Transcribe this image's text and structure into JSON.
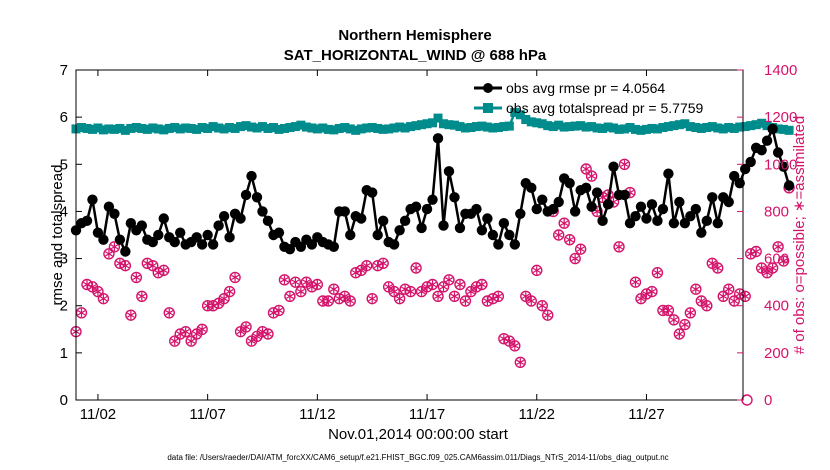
{
  "chart_data": {
    "type": "line",
    "title": "Northern Hemisphere",
    "subtitle": "SAT_HORIZONTAL_WIND @ 688 hPa",
    "xlabel": "Nov.01,2014 00:00:00 start",
    "ylabel_left": "rmse and totalspread",
    "ylabel_right": "# of obs: o=possible; ∗=assimilated",
    "x_ticks": [
      "11/02",
      "11/07",
      "11/12",
      "11/17",
      "11/22",
      "11/27"
    ],
    "x_tick_days": [
      2,
      7,
      12,
      17,
      22,
      27
    ],
    "xlim_days": [
      1.0,
      31.4
    ],
    "ylim_left": [
      0,
      7
    ],
    "y_ticks_left": [
      "0",
      "1",
      "2",
      "3",
      "4",
      "5",
      "6",
      "7"
    ],
    "ylim_right": [
      0,
      1400
    ],
    "y_ticks_right": [
      "0",
      "200",
      "400",
      "600",
      "800",
      "1000",
      "1200",
      "1400"
    ],
    "grid": false,
    "legend_position": "top-right",
    "footnote": "data file: /Users/raeder/DAI/ATM_forcXX/CAM6_setup/f.e21.FHIST_BGC.f09_025.CAM6assim.011/Diags_NTrS_2014-11/obs_diag_output.nc",
    "colors": {
      "rmse": "#000000",
      "spread": "#008c8c",
      "obs": "#d4136b"
    },
    "series": [
      {
        "name": "obs avg rmse pr = 4.0564",
        "axis": "left",
        "x_start_day": 1.0,
        "x_step_days": 0.25,
        "values": [
          3.6,
          3.75,
          3.8,
          4.25,
          3.55,
          3.4,
          4.1,
          3.95,
          3.4,
          3.15,
          3.75,
          3.6,
          3.7,
          3.4,
          3.35,
          3.5,
          3.85,
          3.45,
          3.35,
          3.55,
          3.3,
          3.35,
          3.45,
          3.3,
          3.5,
          3.3,
          3.7,
          3.9,
          3.45,
          3.95,
          3.85,
          4.35,
          4.75,
          4.3,
          4.0,
          3.8,
          3.5,
          3.55,
          3.25,
          3.2,
          3.35,
          3.25,
          3.4,
          3.3,
          3.45,
          3.35,
          3.3,
          3.25,
          4.0,
          4.0,
          3.5,
          3.9,
          3.85,
          4.45,
          4.4,
          3.5,
          3.8,
          3.35,
          3.3,
          3.6,
          3.8,
          4.05,
          4.1,
          3.65,
          4.05,
          4.25,
          5.55,
          3.7,
          4.85,
          4.3,
          3.65,
          3.95,
          3.95,
          4.05,
          3.6,
          3.85,
          3.5,
          3.3,
          3.75,
          3.5,
          3.3,
          3.95,
          4.6,
          4.5,
          4.05,
          4.25,
          4.0,
          4.05,
          4.2,
          4.7,
          4.6,
          4.0,
          4.45,
          4.5,
          4.1,
          4.4,
          3.8,
          4.15,
          4.95,
          4.35,
          4.35,
          3.75,
          3.9,
          4.1,
          3.85,
          4.15,
          3.8,
          4.05,
          4.8,
          3.75,
          4.2,
          3.75,
          3.9,
          4.05,
          3.55,
          3.8,
          4.3,
          3.75,
          4.3,
          4.2,
          4.75,
          4.6,
          4.9,
          5.05,
          5.35,
          5.3,
          5.5,
          5.75,
          5.25,
          4.95,
          4.55
        ]
      },
      {
        "name": "obs avg totalspread pr = 5.7759",
        "axis": "left",
        "x_start_day": 1.0,
        "x_step_days": 0.25,
        "values": [
          5.75,
          5.78,
          5.76,
          5.74,
          5.77,
          5.73,
          5.75,
          5.74,
          5.76,
          5.72,
          5.76,
          5.78,
          5.76,
          5.74,
          5.77,
          5.75,
          5.73,
          5.76,
          5.78,
          5.75,
          5.77,
          5.76,
          5.74,
          5.78,
          5.76,
          5.8,
          5.77,
          5.75,
          5.78,
          5.76,
          5.8,
          5.82,
          5.79,
          5.77,
          5.8,
          5.76,
          5.78,
          5.74,
          5.76,
          5.78,
          5.8,
          5.83,
          5.79,
          5.77,
          5.75,
          5.77,
          5.74,
          5.73,
          5.76,
          5.78,
          5.75,
          5.72,
          5.75,
          5.77,
          5.78,
          5.76,
          5.74,
          5.75,
          5.77,
          5.79,
          5.77,
          5.8,
          5.82,
          5.84,
          5.86,
          5.88,
          5.98,
          5.86,
          5.84,
          5.83,
          5.8,
          5.77,
          5.78,
          5.8,
          5.81,
          5.79,
          5.77,
          5.78,
          5.8,
          5.81,
          6.1,
          6.05,
          5.95,
          5.9,
          5.88,
          5.86,
          5.82,
          5.8,
          5.83,
          5.79,
          5.8,
          5.81,
          5.82,
          5.79,
          5.8,
          5.77,
          5.76,
          5.79,
          5.77,
          5.74,
          5.75,
          5.78,
          5.74,
          5.72,
          5.74,
          5.76,
          5.75,
          5.78,
          5.8,
          5.82,
          5.84,
          5.86,
          5.8,
          5.78,
          5.76,
          5.78,
          5.8,
          5.77,
          5.75,
          5.78,
          5.76,
          5.79,
          5.8,
          5.82,
          5.84,
          5.87,
          5.82,
          5.78,
          5.75,
          5.74,
          5.72
        ]
      },
      {
        "name": "possible",
        "axis": "right",
        "x_start_day": 1.0,
        "x_step_days": 0.25,
        "values": [
          290,
          370,
          490,
          480,
          460,
          430,
          620,
          650,
          580,
          570,
          360,
          520,
          440,
          580,
          570,
          540,
          550,
          370,
          250,
          280,
          290,
          250,
          280,
          300,
          400,
          400,
          410,
          430,
          460,
          520,
          290,
          310,
          250,
          270,
          290,
          280,
          370,
          380,
          510,
          440,
          500,
          460,
          500,
          480,
          490,
          420,
          420,
          470,
          430,
          440,
          420,
          540,
          550,
          570,
          430,
          570,
          580,
          480,
          460,
          430,
          470,
          460,
          560,
          460,
          480,
          490,
          440,
          480,
          510,
          440,
          490,
          420,
          460,
          480,
          490,
          420,
          430,
          440,
          260,
          250,
          230,
          160,
          440,
          420,
          550,
          400,
          360,
          800,
          700,
          750,
          680,
          600,
          640,
          980,
          950,
          800,
          860,
          870,
          840,
          650,
          1000,
          880,
          500,
          430,
          450,
          460,
          540,
          380,
          380,
          340,
          280,
          320,
          370,
          470,
          420,
          400,
          580,
          560,
          440,
          470,
          420,
          450,
          440,
          620,
          630,
          560,
          540,
          560,
          650,
          590,
          900
        ]
      },
      {
        "name": "assimilated",
        "axis": "right",
        "x_start_day": 1.0,
        "x_step_days": 0.25,
        "values": [
          290,
          370,
          490,
          480,
          460,
          430,
          620,
          650,
          580,
          570,
          360,
          520,
          440,
          580,
          570,
          540,
          550,
          370,
          250,
          280,
          290,
          250,
          280,
          300,
          400,
          400,
          410,
          430,
          460,
          520,
          290,
          310,
          250,
          270,
          290,
          280,
          370,
          380,
          510,
          440,
          500,
          460,
          500,
          480,
          490,
          420,
          420,
          470,
          430,
          440,
          420,
          540,
          550,
          570,
          430,
          570,
          580,
          480,
          460,
          430,
          470,
          460,
          560,
          460,
          480,
          490,
          440,
          480,
          510,
          440,
          490,
          420,
          460,
          480,
          490,
          420,
          430,
          440,
          260,
          250,
          230,
          160,
          440,
          420,
          550,
          400,
          360,
          800,
          700,
          750,
          680,
          600,
          640,
          980,
          950,
          800,
          860,
          870,
          840,
          650,
          1000,
          880,
          500,
          430,
          450,
          460,
          540,
          380,
          380,
          340,
          280,
          320,
          370,
          470,
          420,
          400,
          580,
          560,
          440,
          470,
          420,
          450,
          440,
          620,
          630,
          560,
          540,
          560,
          650,
          590,
          900
        ]
      }
    ]
  }
}
